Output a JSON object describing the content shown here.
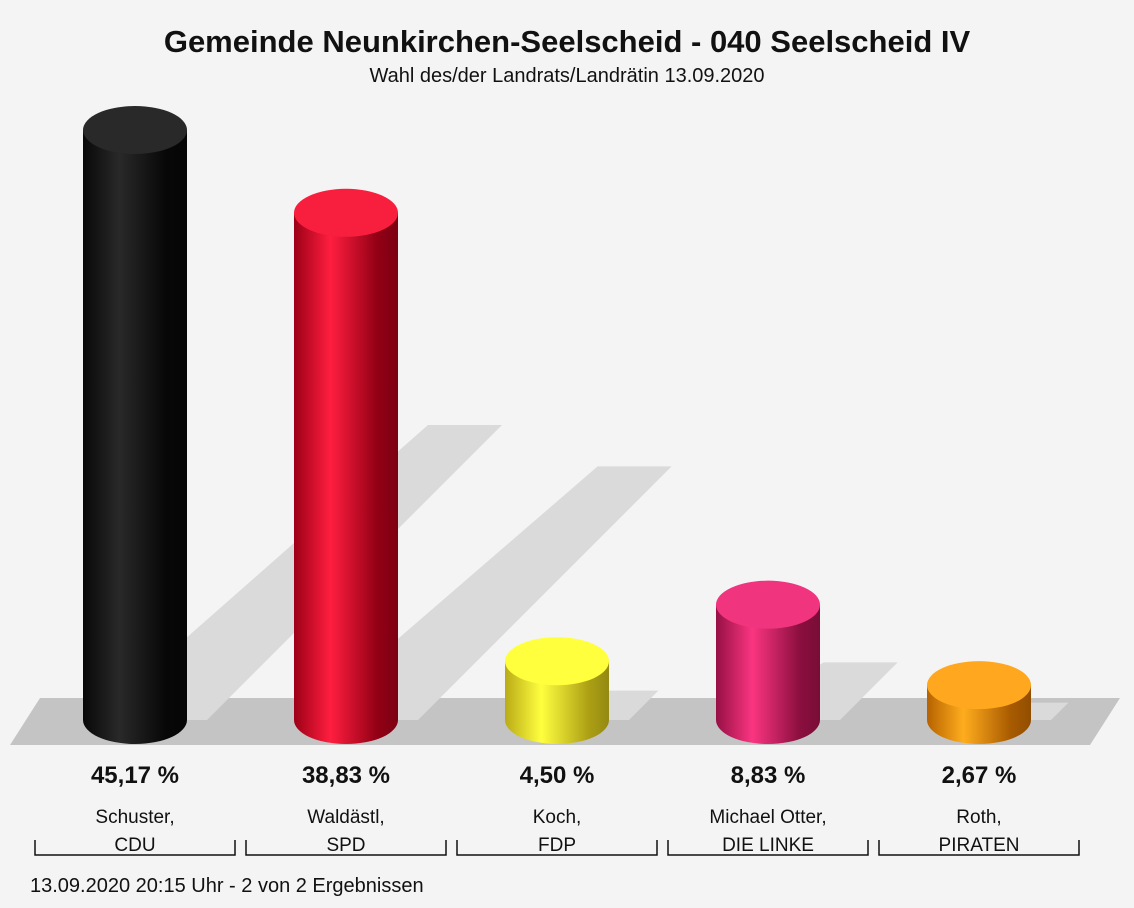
{
  "chart_data": {
    "type": "bar",
    "title": "Gemeinde Neunkirchen-Seelscheid - 040 Seelscheid IV",
    "subtitle": "Wahl des/der Landrats/Landrätin 13.09.2020",
    "categories": [
      [
        "Schuster,",
        "CDU"
      ],
      [
        "Waldästl,",
        "SPD"
      ],
      [
        "Koch,",
        "FDP"
      ],
      [
        "Michael Otter,",
        "DIE LINKE"
      ],
      [
        "Roth,",
        "PIRATEN"
      ]
    ],
    "values": [
      45.17,
      38.83,
      4.5,
      8.83,
      2.67
    ],
    "value_labels": [
      "45,17 %",
      "38,83 %",
      "4,50 %",
      "8,83 %",
      "2,67 %"
    ],
    "colors": [
      "#0a0a0a",
      "#d0001e",
      "#f7e41e",
      "#c8155a",
      "#f28200"
    ],
    "footer": "13.09.2020 20:15 Uhr - 2 von 2 Ergebnissen"
  }
}
